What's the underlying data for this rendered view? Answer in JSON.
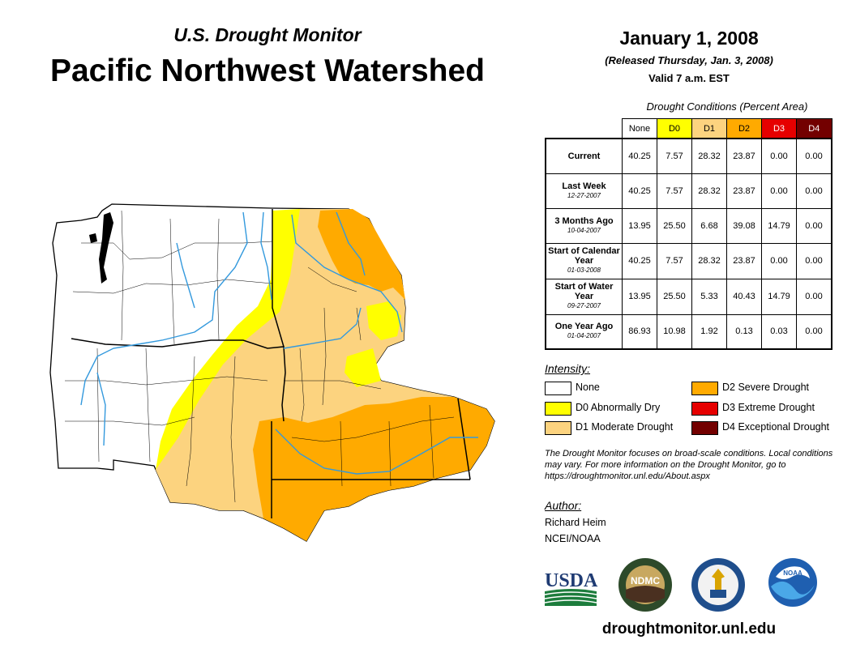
{
  "header": {
    "subtitle": "U.S. Drought Monitor",
    "title": "Pacific Northwest Watershed",
    "date": "January 1, 2008",
    "released": "(Released Thursday, Jan. 3, 2008)",
    "valid": "Valid 7 a.m. EST"
  },
  "table": {
    "caption": "Drought Conditions (Percent Area)",
    "columns": [
      {
        "label": "None",
        "color": "#ffffff",
        "text_color": "#000000"
      },
      {
        "label": "D0",
        "color": "#ffff00",
        "text_color": "#000000"
      },
      {
        "label": "D1",
        "color": "#fcd37f",
        "text_color": "#000000"
      },
      {
        "label": "D2",
        "color": "#ffaa00",
        "text_color": "#000000"
      },
      {
        "label": "D3",
        "color": "#e60000",
        "text_color": "#ffffff"
      },
      {
        "label": "D4",
        "color": "#730000",
        "text_color": "#ffffff"
      }
    ],
    "rows": [
      {
        "label": "Current",
        "date": "",
        "values": [
          "40.25",
          "7.57",
          "28.32",
          "23.87",
          "0.00",
          "0.00"
        ]
      },
      {
        "label": "Last Week",
        "date": "12-27-2007",
        "values": [
          "40.25",
          "7.57",
          "28.32",
          "23.87",
          "0.00",
          "0.00"
        ]
      },
      {
        "label": "3 Months Ago",
        "date": "10-04-2007",
        "values": [
          "13.95",
          "25.50",
          "6.68",
          "39.08",
          "14.79",
          "0.00"
        ]
      },
      {
        "label": "Start of Calendar Year",
        "date": "01-03-2008",
        "values": [
          "40.25",
          "7.57",
          "28.32",
          "23.87",
          "0.00",
          "0.00"
        ]
      },
      {
        "label": "Start of Water Year",
        "date": "09-27-2007",
        "values": [
          "13.95",
          "25.50",
          "5.33",
          "40.43",
          "14.79",
          "0.00"
        ]
      },
      {
        "label": "One Year Ago",
        "date": "01-04-2007",
        "values": [
          "86.93",
          "10.98",
          "1.92",
          "0.13",
          "0.03",
          "0.00"
        ]
      }
    ]
  },
  "legend": {
    "heading": "Intensity:",
    "items": [
      {
        "label": "None",
        "color": "#ffffff"
      },
      {
        "label": "D0 Abnormally Dry",
        "color": "#ffff00"
      },
      {
        "label": "D1 Moderate Drought",
        "color": "#fcd37f"
      },
      {
        "label": "D2 Severe Drought",
        "color": "#ffaa00"
      },
      {
        "label": "D3 Extreme Drought",
        "color": "#e60000"
      },
      {
        "label": "D4 Exceptional Drought",
        "color": "#730000"
      }
    ]
  },
  "note": "The Drought Monitor focuses on broad-scale conditions. Local conditions may vary. For more information on the Drought Monitor, go to https://droughtmonitor.unl.edu/About.aspx",
  "author": {
    "heading": "Author:",
    "name": "Richard Heim",
    "org": "NCEI/NOAA"
  },
  "logos": {
    "usda": "USDA",
    "ndmc": "NDMC",
    "noaa": "NOAA"
  },
  "footer_url": "droughtmonitor.unl.edu",
  "colors": {
    "water": "#3399dd",
    "boundary": "#000000"
  }
}
